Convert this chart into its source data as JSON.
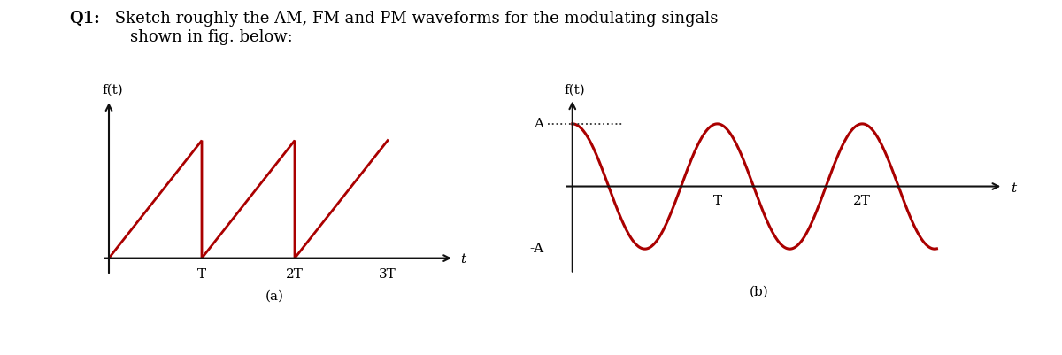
{
  "title_bold": "Q1:",
  "title_text": " Sketch roughly the AM, FM and PM waveforms for the modulating singals\n    shown in fig. below:",
  "title_fontsize": 13,
  "background_color": "#ffffff",
  "wave_color": "#aa0000",
  "axis_color": "#111111",
  "label_a_ylabel": "f(t)",
  "label_b_ylabel": "f(t)",
  "label_a_caption": "(a)",
  "label_b_caption": "(b)",
  "label_t": "t",
  "label_T": "T",
  "label_2T": "2T",
  "label_3T": "3T",
  "label_A": "A",
  "label_negA": "-A",
  "dotted_color": "#333333",
  "fig_width": 12.0,
  "fig_height": 4.01,
  "dpi": 100
}
